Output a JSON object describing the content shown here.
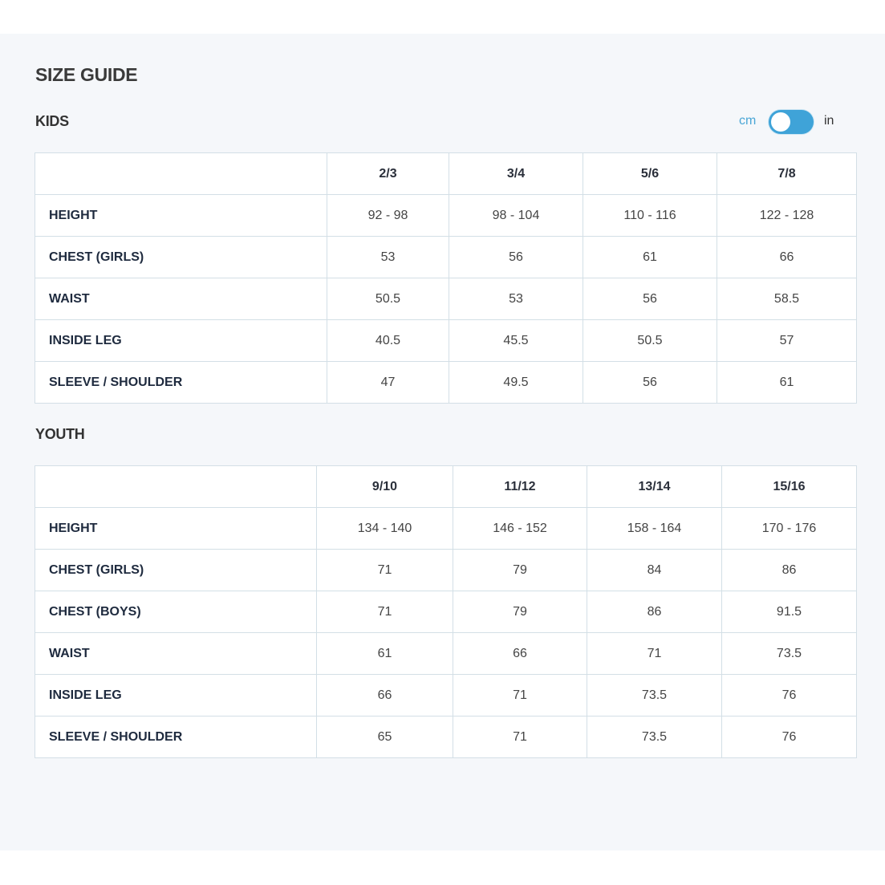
{
  "title": "SIZE GUIDE",
  "units": {
    "left": "cm",
    "right": "in",
    "selected": "cm",
    "accent": "#3fa3d8"
  },
  "kids": {
    "heading": "KIDS",
    "columns": [
      "2/3",
      "3/4",
      "5/6",
      "7/8"
    ],
    "rows": [
      {
        "label": "HEIGHT",
        "values": [
          "92 - 98",
          "98 - 104",
          "110 - 116",
          "122 - 128"
        ]
      },
      {
        "label": "CHEST (GIRLS)",
        "values": [
          "53",
          "56",
          "61",
          "66"
        ]
      },
      {
        "label": "WAIST",
        "values": [
          "50.5",
          "53",
          "56",
          "58.5"
        ]
      },
      {
        "label": "INSIDE LEG",
        "values": [
          "40.5",
          "45.5",
          "50.5",
          "57"
        ]
      },
      {
        "label": "SLEEVE / SHOULDER",
        "values": [
          "47",
          "49.5",
          "56",
          "61"
        ]
      }
    ]
  },
  "youth": {
    "heading": "YOUTH",
    "columns": [
      "9/10",
      "11/12",
      "13/14",
      "15/16"
    ],
    "rows": [
      {
        "label": "HEIGHT",
        "values": [
          "134 - 140",
          "146 - 152",
          "158 - 164",
          "170 - 176"
        ]
      },
      {
        "label": "CHEST (GIRLS)",
        "values": [
          "71",
          "79",
          "84",
          "86"
        ]
      },
      {
        "label": "CHEST (BOYS)",
        "values": [
          "71",
          "79",
          "86",
          "91.5"
        ]
      },
      {
        "label": "WAIST",
        "values": [
          "61",
          "66",
          "71",
          "73.5"
        ]
      },
      {
        "label": "INSIDE LEG",
        "values": [
          "66",
          "71",
          "73.5",
          "76"
        ]
      },
      {
        "label": "SLEEVE / SHOULDER",
        "values": [
          "65",
          "71",
          "73.5",
          "76"
        ]
      }
    ]
  }
}
